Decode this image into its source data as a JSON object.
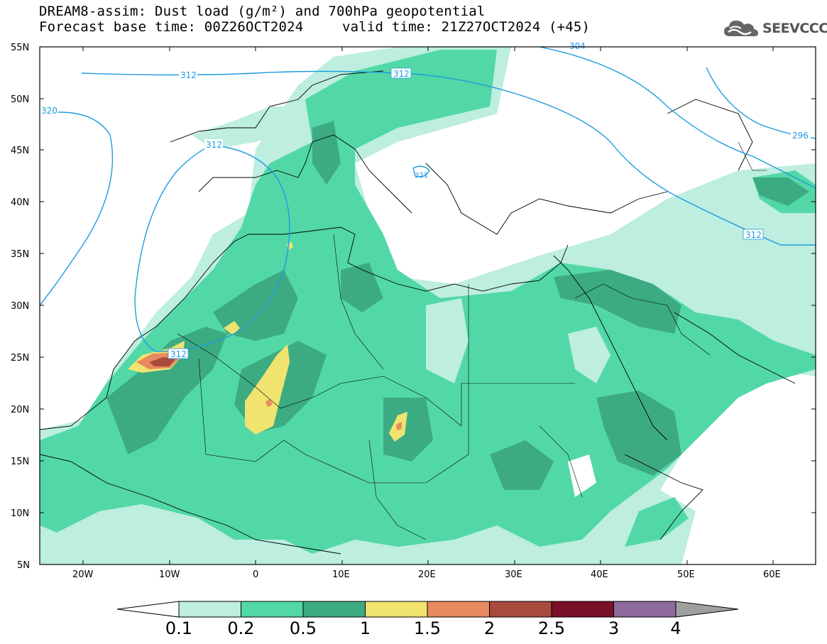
{
  "header": {
    "title_line1": "DREAM8-assim: Dust load (g/m²) and 700hPa geopotential",
    "title_line2_left": "Forecast base time: 00Z26OCT2024",
    "title_line2_right": "valid time: 21Z27OCT2024 (+45)",
    "logo_text": "SEEVCCC"
  },
  "map": {
    "lat_labels": [
      "55N",
      "50N",
      "45N",
      "40N",
      "35N",
      "30N",
      "25N",
      "20N",
      "15N",
      "10N",
      "5N"
    ],
    "lon_labels": [
      "20W",
      "10W",
      "0",
      "10E",
      "20E",
      "30E",
      "40E",
      "50E",
      "60E"
    ],
    "geopotential_contours": [
      "312",
      "320",
      "312",
      "312",
      "312",
      "312",
      "296",
      "304",
      "321"
    ]
  },
  "colorbar": {
    "levels": [
      "0.1",
      "0.2",
      "0.5",
      "1",
      "1.5",
      "2",
      "2.5",
      "3",
      "4"
    ],
    "colors": [
      "#ffffff",
      "#bdeee0",
      "#52d8a6",
      "#3dab82",
      "#f0e370",
      "#e88a60",
      "#a84a3c",
      "#7a0f2a",
      "#8f6a9e",
      "#a0a0a0"
    ]
  }
}
